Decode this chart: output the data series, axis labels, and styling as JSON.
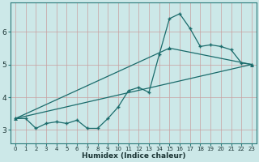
{
  "xlabel": "Humidex (Indice chaleur)",
  "bg_color": "#cce8e8",
  "grid_color": "#b0d0d0",
  "line_color": "#1a6b6b",
  "xlim": [
    -0.5,
    23.5
  ],
  "ylim": [
    2.6,
    6.9
  ],
  "xticks": [
    0,
    1,
    2,
    3,
    4,
    5,
    6,
    7,
    8,
    9,
    10,
    11,
    12,
    13,
    14,
    15,
    16,
    17,
    18,
    19,
    20,
    21,
    22,
    23
  ],
  "yticks": [
    3,
    4,
    5,
    6
  ],
  "line1_x": [
    0,
    1,
    2,
    3,
    4,
    5,
    6,
    7,
    8,
    9,
    10,
    11,
    12,
    13,
    14,
    15,
    16,
    17,
    18,
    19,
    20,
    21,
    22,
    23
  ],
  "line1_y": [
    3.35,
    3.35,
    3.05,
    3.2,
    3.25,
    3.2,
    3.3,
    3.05,
    3.05,
    3.35,
    3.7,
    4.2,
    4.3,
    4.15,
    5.3,
    6.4,
    6.55,
    6.1,
    5.55,
    5.6,
    5.55,
    5.45,
    5.05,
    5.0
  ],
  "line2_x": [
    0,
    23
  ],
  "line2_y": [
    3.35,
    5.0
  ],
  "line3_x": [
    0,
    15,
    23
  ],
  "line3_y": [
    3.35,
    5.5,
    5.0
  ],
  "marker_color": "#1a6b6b"
}
